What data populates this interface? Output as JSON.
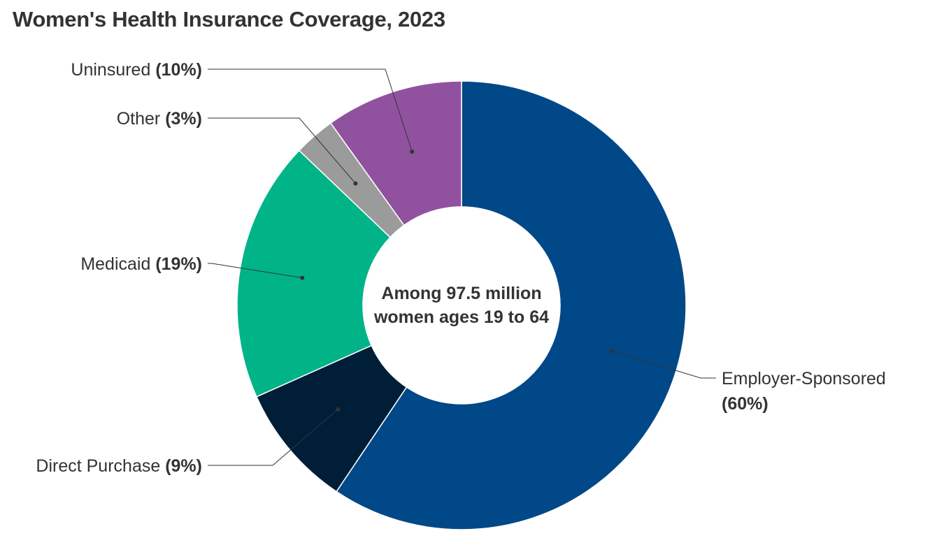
{
  "chart_data": {
    "type": "pie",
    "title": "Women's Health Insurance Coverage, 2023",
    "center_label": [
      "Among 97.5 million",
      "women ages 19 to 64"
    ],
    "slices": [
      {
        "name": "Employer-Sponsored",
        "value": 60,
        "pct_label": "(60%)",
        "color": "#004887"
      },
      {
        "name": "Direct Purchase",
        "value": 9,
        "pct_label": "(9%)",
        "color": "#001e38"
      },
      {
        "name": "Medicaid",
        "value": 19,
        "pct_label": "(19%)",
        "color": "#00b488"
      },
      {
        "name": "Other",
        "value": 3,
        "pct_label": "(3%)",
        "color": "#9b9b9b"
      },
      {
        "name": "Uninsured",
        "value": 10,
        "pct_label": "(10%)",
        "color": "#90529f"
      }
    ]
  }
}
